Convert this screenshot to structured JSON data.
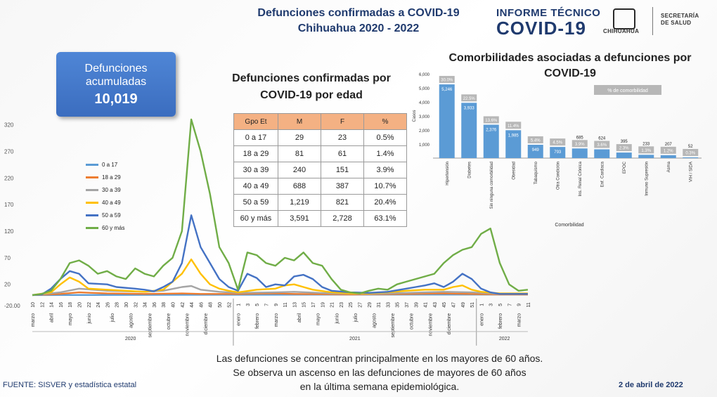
{
  "header": {
    "title_line1": "Defunciones confirmadas a COVID-19",
    "title_line2": "Chihuahua 2020 - 2022",
    "logo_line1": "INFORME TÉCNICO",
    "logo_line2": "COVID-19",
    "state_name": "CHIHUAHUA",
    "secretaria_line1": "SECRETARÍA",
    "secretaria_line2": "DE SALUD"
  },
  "accumulated": {
    "label": "Defunciones acumuladas",
    "value": "10,019"
  },
  "age_table": {
    "title": "Defunciones confirmadas por COVID-19 por edad",
    "headers": [
      "Gpo Et",
      "M",
      "F",
      "%"
    ],
    "rows": [
      [
        "0 a 17",
        "29",
        "23",
        "0.5%"
      ],
      [
        "18 a 29",
        "81",
        "61",
        "1.4%"
      ],
      [
        "30 a 39",
        "240",
        "151",
        "3.9%"
      ],
      [
        "40 a 49",
        "688",
        "387",
        "10.7%"
      ],
      [
        "50 a 59",
        "1,219",
        "821",
        "20.4%"
      ],
      [
        "60 y más",
        "3,591",
        "2,728",
        "63.1%"
      ]
    ]
  },
  "comorbidity_title": "Comorbilidades asociadas a defunciones por COVID-19",
  "footer": {
    "line1": "Las defunciones se concentran principalmente en los mayores de 60 años.",
    "line2": "Se observa un ascenso en las defunciones de mayores de 60 años",
    "line3": "en la última semana epidemiológica.",
    "fuente": "FUENTE: SISVER y estadística estatal",
    "fecha": "2 de abril de 2022"
  },
  "chart_data": [
    {
      "type": "line",
      "ylim": [
        -20,
        330
      ],
      "yticks": [
        "-20.00",
        "20",
        "70",
        "120",
        "170",
        "220",
        "270",
        "320"
      ],
      "ytick_values": [
        -20,
        20,
        70,
        120,
        170,
        220,
        270,
        320
      ],
      "week_labels": [
        "10",
        "12",
        "14",
        "16",
        "18",
        "20",
        "22",
        "24",
        "26",
        "28",
        "30",
        "32",
        "34",
        "36",
        "38",
        "40",
        "42",
        "44",
        "46",
        "48",
        "50",
        "52",
        "1",
        "3",
        "5",
        "7",
        "9",
        "11",
        "13",
        "15",
        "17",
        "19",
        "21",
        "23",
        "25",
        "27",
        "29",
        "31",
        "33",
        "35",
        "37",
        "39",
        "41",
        "43",
        "45",
        "47",
        "49",
        "51",
        "1",
        "3",
        "5",
        "7",
        "9",
        "11"
      ],
      "months": [
        {
          "label": "marzo",
          "i": 0
        },
        {
          "label": "abril",
          "i": 2
        },
        {
          "label": "mayo",
          "i": 4
        },
        {
          "label": "junio",
          "i": 6
        },
        {
          "label": "julio",
          "i": 8.5
        },
        {
          "label": "agosto",
          "i": 10.5
        },
        {
          "label": "septiembre",
          "i": 12.5
        },
        {
          "label": "octubre",
          "i": 14.5
        },
        {
          "label": "noviembre",
          "i": 16.5
        },
        {
          "label": "diciembre",
          "i": 18.5
        },
        {
          "label": "enero",
          "i": 22
        },
        {
          "label": "febrero",
          "i": 24
        },
        {
          "label": "marzo",
          "i": 26
        },
        {
          "label": "abril",
          "i": 28.5
        },
        {
          "label": "mayo",
          "i": 30.5
        },
        {
          "label": "junio",
          "i": 32.5
        },
        {
          "label": "julio",
          "i": 34.5
        },
        {
          "label": "agosto",
          "i": 36.5
        },
        {
          "label": "septiembre",
          "i": 38.5
        },
        {
          "label": "octubre",
          "i": 40.5
        },
        {
          "label": "noviembre",
          "i": 42.5
        },
        {
          "label": "diciembre",
          "i": 44.5
        },
        {
          "label": "enero",
          "i": 48
        },
        {
          "label": "febrero",
          "i": 50
        },
        {
          "label": "marzo",
          "i": 52
        }
      ],
      "years": [
        {
          "label": "2020",
          "i": 10.5
        },
        {
          "label": "2021",
          "i": 34.5
        },
        {
          "label": "2022",
          "i": 50.5
        }
      ],
      "series": [
        {
          "name": "0 a 17",
          "color": "#5b9bd5",
          "points": [
            [
              0,
              0
            ],
            [
              40,
              1
            ],
            [
              53,
              1
            ]
          ]
        },
        {
          "name": "18 a 29",
          "color": "#ed7d31",
          "points": [
            [
              0,
              0
            ],
            [
              3,
              2
            ],
            [
              5,
              5
            ],
            [
              8,
              3
            ],
            [
              12,
              2
            ],
            [
              16,
              3
            ],
            [
              18,
              2
            ],
            [
              22,
              2
            ],
            [
              26,
              3
            ],
            [
              28,
              2
            ],
            [
              34,
              1
            ],
            [
              40,
              2
            ],
            [
              44,
              3
            ],
            [
              47,
              2
            ],
            [
              50,
              1
            ],
            [
              53,
              1
            ]
          ]
        },
        {
          "name": "30 a 39",
          "color": "#a5a5a5",
          "points": [
            [
              0,
              0
            ],
            [
              3,
              5
            ],
            [
              5,
              12
            ],
            [
              8,
              8
            ],
            [
              12,
              6
            ],
            [
              14,
              8
            ],
            [
              16,
              15
            ],
            [
              17,
              17
            ],
            [
              18,
              10
            ],
            [
              20,
              6
            ],
            [
              22,
              4
            ],
            [
              26,
              5
            ],
            [
              28,
              6
            ],
            [
              32,
              3
            ],
            [
              36,
              2
            ],
            [
              40,
              4
            ],
            [
              44,
              6
            ],
            [
              47,
              5
            ],
            [
              50,
              2
            ],
            [
              53,
              2
            ]
          ]
        },
        {
          "name": "40 a 49",
          "color": "#ffc000",
          "points": [
            [
              0,
              0
            ],
            [
              2,
              5
            ],
            [
              3,
              20
            ],
            [
              4,
              33
            ],
            [
              5,
              25
            ],
            [
              6,
              12
            ],
            [
              8,
              10
            ],
            [
              10,
              8
            ],
            [
              12,
              6
            ],
            [
              14,
              10
            ],
            [
              16,
              40
            ],
            [
              17,
              67
            ],
            [
              18,
              40
            ],
            [
              19,
              20
            ],
            [
              20,
              12
            ],
            [
              21,
              8
            ],
            [
              22,
              5
            ],
            [
              24,
              10
            ],
            [
              26,
              12
            ],
            [
              27,
              18
            ],
            [
              28,
              20
            ],
            [
              29,
              15
            ],
            [
              30,
              10
            ],
            [
              32,
              5
            ],
            [
              34,
              3
            ],
            [
              36,
              3
            ],
            [
              38,
              5
            ],
            [
              40,
              8
            ],
            [
              42,
              10
            ],
            [
              44,
              10
            ],
            [
              45,
              15
            ],
            [
              46,
              18
            ],
            [
              47,
              10
            ],
            [
              48,
              6
            ],
            [
              50,
              3
            ],
            [
              51,
              3
            ],
            [
              53,
              3
            ]
          ]
        },
        {
          "name": "50 a 59",
          "color": "#4472c4",
          "points": [
            [
              0,
              0
            ],
            [
              1,
              1
            ],
            [
              2,
              12
            ],
            [
              3,
              30
            ],
            [
              4,
              45
            ],
            [
              5,
              40
            ],
            [
              6,
              22
            ],
            [
              8,
              20
            ],
            [
              9,
              15
            ],
            [
              11,
              12
            ],
            [
              12,
              10
            ],
            [
              13,
              7
            ],
            [
              14,
              15
            ],
            [
              15,
              25
            ],
            [
              16,
              60
            ],
            [
              17,
              150
            ],
            [
              18,
              90
            ],
            [
              19,
              60
            ],
            [
              20,
              30
            ],
            [
              21,
              15
            ],
            [
              22,
              8
            ],
            [
              23,
              40
            ],
            [
              24,
              32
            ],
            [
              25,
              15
            ],
            [
              26,
              20
            ],
            [
              27,
              18
            ],
            [
              28,
              35
            ],
            [
              29,
              38
            ],
            [
              30,
              30
            ],
            [
              31,
              15
            ],
            [
              32,
              8
            ],
            [
              34,
              5
            ],
            [
              36,
              4
            ],
            [
              38,
              6
            ],
            [
              40,
              12
            ],
            [
              41,
              15
            ],
            [
              42,
              18
            ],
            [
              43,
              22
            ],
            [
              44,
              15
            ],
            [
              45,
              25
            ],
            [
              46,
              40
            ],
            [
              47,
              30
            ],
            [
              48,
              12
            ],
            [
              49,
              5
            ],
            [
              50,
              2
            ],
            [
              51,
              2
            ],
            [
              53,
              2
            ]
          ]
        },
        {
          "name": "60 y más",
          "color": "#70ad47",
          "points": [
            [
              0,
              0
            ],
            [
              1,
              2
            ],
            [
              2,
              8
            ],
            [
              3,
              30
            ],
            [
              4,
              60
            ],
            [
              5,
              65
            ],
            [
              6,
              55
            ],
            [
              7,
              40
            ],
            [
              8,
              45
            ],
            [
              9,
              35
            ],
            [
              10,
              30
            ],
            [
              11,
              50
            ],
            [
              12,
              40
            ],
            [
              13,
              35
            ],
            [
              14,
              55
            ],
            [
              15,
              70
            ],
            [
              16,
              120
            ],
            [
              17,
              330
            ],
            [
              18,
              270
            ],
            [
              19,
              190
            ],
            [
              20,
              90
            ],
            [
              21,
              60
            ],
            [
              22,
              10
            ],
            [
              23,
              80
            ],
            [
              24,
              75
            ],
            [
              25,
              60
            ],
            [
              26,
              55
            ],
            [
              27,
              70
            ],
            [
              28,
              65
            ],
            [
              29,
              80
            ],
            [
              30,
              60
            ],
            [
              31,
              55
            ],
            [
              32,
              30
            ],
            [
              33,
              10
            ],
            [
              34,
              5
            ],
            [
              35,
              3
            ],
            [
              36,
              8
            ],
            [
              37,
              12
            ],
            [
              38,
              10
            ],
            [
              39,
              20
            ],
            [
              40,
              25
            ],
            [
              41,
              30
            ],
            [
              42,
              35
            ],
            [
              43,
              40
            ],
            [
              44,
              60
            ],
            [
              45,
              75
            ],
            [
              46,
              85
            ],
            [
              47,
              90
            ],
            [
              48,
              115
            ],
            [
              49,
              125
            ],
            [
              50,
              60
            ],
            [
              51,
              20
            ],
            [
              52,
              8
            ],
            [
              53,
              10
            ]
          ]
        }
      ]
    },
    {
      "type": "bar",
      "ylabel": "Casos",
      "xlabel": "Comorbilidad",
      "legend": "% de comorbilidad",
      "ylim": [
        0,
        6000
      ],
      "yticks": [
        "1,000",
        "2,000",
        "3,000",
        "4,000",
        "5,000",
        "6,000"
      ],
      "ytick_values": [
        1000,
        2000,
        3000,
        4000,
        5000,
        6000
      ],
      "categories": [
        "Hipertensión",
        "Diabetes",
        "Sin ninguna comorbilidad",
        "Obesidad",
        "Tabaquismo",
        "Otra Condición",
        "Ins. Renal Crónica",
        "Enf. Cardiaca",
        "EPOC",
        "Inmuno Supresión",
        "Asma",
        "VIH / SIDA"
      ],
      "values": [
        5246,
        3933,
        2376,
        1985,
        949,
        793,
        685,
        624,
        395,
        233,
        207,
        52
      ],
      "value_labels": [
        "5,246",
        "3,933",
        "2,376",
        "1,985",
        "949",
        "793",
        "685",
        "624",
        "395",
        "233",
        "207",
        "52"
      ],
      "percent_labels": [
        "30.0%",
        "22.5%",
        "13.6%",
        "11.4%",
        "5.4%",
        "4.5%",
        "3.9%",
        "3.6%",
        "2.3%",
        "1.3%",
        "1.2%",
        "0.3%"
      ],
      "colors": {
        "bar": "#5b9bd5",
        "pct_box": "#b7b7b7"
      }
    }
  ]
}
